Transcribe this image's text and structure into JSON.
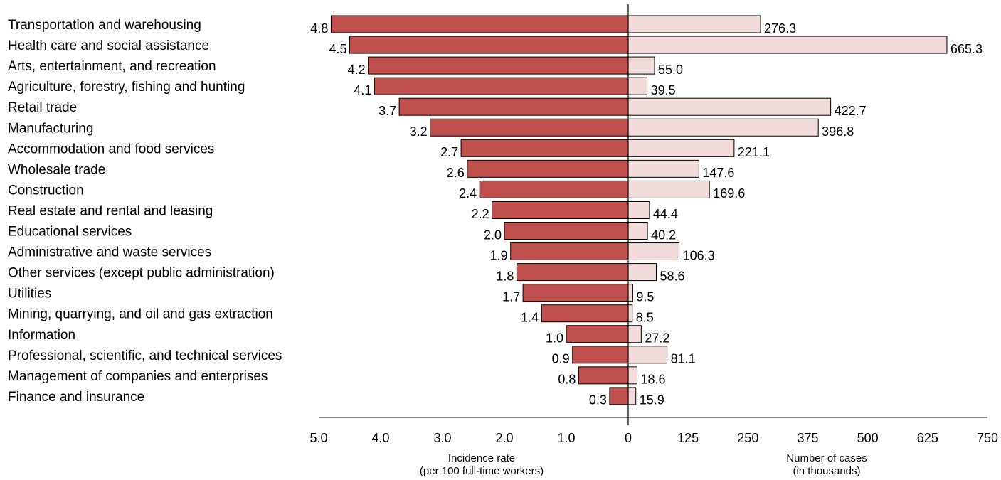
{
  "chart_data": {
    "type": "bar",
    "categories": [
      "Transportation and warehousing",
      "Health care and social assistance",
      "Arts, entertainment, and recreation",
      "Agriculture, forestry, fishing and hunting",
      "Retail trade",
      "Manufacturing",
      "Accommodation and food services",
      "Wholesale trade",
      "Construction",
      "Real estate and rental and leasing",
      "Educational services",
      "Administrative and waste services",
      "Other services (except public administration)",
      "Utilities",
      "Mining, quarrying, and oil and gas extraction",
      "Information",
      "Professional, scientific, and technical services",
      "Management of companies and enterprises",
      "Finance and insurance"
    ],
    "series": [
      {
        "values": [
          4.8,
          4.5,
          4.2,
          4.1,
          3.7,
          3.2,
          2.7,
          2.6,
          2.4,
          2.2,
          2.0,
          1.9,
          1.8,
          1.7,
          1.4,
          1.0,
          0.9,
          0.8,
          0.3
        ],
        "labels": [
          "4.8",
          "4.5",
          "4.2",
          "4.1",
          "3.7",
          "3.2",
          "2.7",
          "2.6",
          "2.4",
          "2.2",
          "2.0",
          "1.9",
          "1.8",
          "1.7",
          "1.4",
          "1.0",
          "0.9",
          "0.8",
          "0.3"
        ],
        "color": "#c0504d"
      },
      {
        "values": [
          276.3,
          665.3,
          55.0,
          39.5,
          422.7,
          396.8,
          221.1,
          147.6,
          169.6,
          44.4,
          40.2,
          106.3,
          58.6,
          9.5,
          8.5,
          27.2,
          81.1,
          18.6,
          15.9
        ],
        "labels": [
          "276.3",
          "665.3",
          "55.0",
          "39.5",
          "422.7",
          "396.8",
          "221.1",
          "147.6",
          "169.6",
          "44.4",
          "40.2",
          "106.3",
          "58.6",
          "9.5",
          "8.5",
          "27.2",
          "81.1",
          "18.6",
          "15.9"
        ],
        "color": "#f2dcdb"
      }
    ],
    "left_axis": {
      "title": [
        "Incidence rate",
        "(per 100 full-time workers)"
      ],
      "range": [
        0,
        5
      ],
      "ticks": [
        5,
        4,
        3,
        2,
        1,
        0
      ],
      "tick_labels": [
        "5.0",
        "4.0",
        "3.0",
        "2.0",
        "1.0",
        "0"
      ]
    },
    "right_axis": {
      "title": [
        "Number of cases",
        "(in thousands)"
      ],
      "range": [
        0,
        750
      ],
      "ticks": [
        125,
        250,
        375,
        500,
        625,
        750
      ],
      "tick_labels": [
        "125",
        "250",
        "375",
        "500",
        "625",
        "750"
      ]
    },
    "grid": false,
    "legend": "none"
  }
}
